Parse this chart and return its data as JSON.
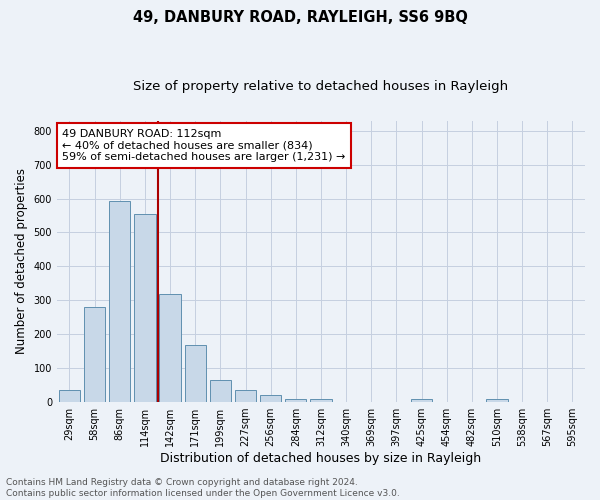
{
  "title": "49, DANBURY ROAD, RAYLEIGH, SS6 9BQ",
  "subtitle": "Size of property relative to detached houses in Rayleigh",
  "xlabel": "Distribution of detached houses by size in Rayleigh",
  "ylabel": "Number of detached properties",
  "categories": [
    "29sqm",
    "58sqm",
    "86sqm",
    "114sqm",
    "142sqm",
    "171sqm",
    "199sqm",
    "227sqm",
    "256sqm",
    "284sqm",
    "312sqm",
    "340sqm",
    "369sqm",
    "397sqm",
    "425sqm",
    "454sqm",
    "482sqm",
    "510sqm",
    "538sqm",
    "567sqm",
    "595sqm"
  ],
  "values": [
    37,
    280,
    593,
    554,
    320,
    167,
    65,
    37,
    22,
    10,
    8,
    0,
    0,
    0,
    10,
    0,
    0,
    10,
    0,
    0,
    0
  ],
  "bar_color": "#c8d8e8",
  "bar_edge_color": "#6090b0",
  "vline_color": "#aa0000",
  "vline_x": 3.5,
  "annotation_text": "49 DANBURY ROAD: 112sqm\n← 40% of detached houses are smaller (834)\n59% of semi-detached houses are larger (1,231) →",
  "annotation_box_color": "#ffffff",
  "annotation_box_edge_color": "#cc0000",
  "ylim": [
    0,
    830
  ],
  "yticks": [
    0,
    100,
    200,
    300,
    400,
    500,
    600,
    700,
    800
  ],
  "background_color": "#edf2f8",
  "grid_color": "#c5cfe0",
  "footnote": "Contains HM Land Registry data © Crown copyright and database right 2024.\nContains public sector information licensed under the Open Government Licence v3.0.",
  "title_fontsize": 10.5,
  "subtitle_fontsize": 9.5,
  "xlabel_fontsize": 9,
  "ylabel_fontsize": 8.5,
  "tick_fontsize": 7,
  "annotation_fontsize": 8,
  "footnote_fontsize": 6.5
}
